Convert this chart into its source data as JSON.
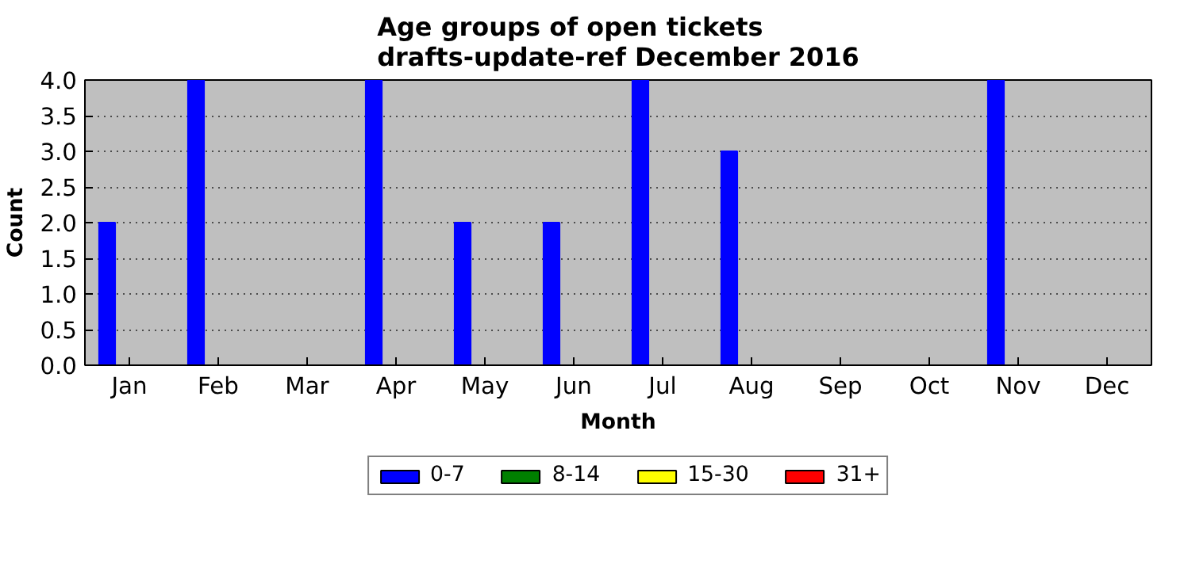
{
  "chart_data": {
    "type": "bar",
    "title": "Age groups of open tickets\ndrafts-update-ref December 2016",
    "xlabel": "Month",
    "ylabel": "Count",
    "categories": [
      "Jan",
      "Feb",
      "Mar",
      "Apr",
      "May",
      "Jun",
      "Jul",
      "Aug",
      "Sep",
      "Oct",
      "Nov",
      "Dec"
    ],
    "series": [
      {
        "name": "0-7",
        "color": "#0000ff",
        "values": [
          2,
          4,
          0,
          4,
          2,
          2,
          4,
          3,
          0,
          0,
          4,
          0
        ]
      },
      {
        "name": "8-14",
        "color": "#008000",
        "values": [
          0,
          0,
          0,
          0,
          0,
          0,
          0,
          0,
          0,
          0,
          0,
          0
        ]
      },
      {
        "name": "15-30",
        "color": "#ffff00",
        "values": [
          0,
          0,
          0,
          0,
          0,
          0,
          0,
          0,
          0,
          0,
          0,
          0
        ]
      },
      {
        "name": "31+",
        "color": "#ff0000",
        "values": [
          0,
          0,
          0,
          0,
          0,
          0,
          0,
          0,
          0,
          0,
          0,
          0
        ]
      }
    ],
    "ylim": [
      0,
      4
    ],
    "yticks": [
      {
        "value": 0,
        "label": "0.0"
      },
      0.5,
      {
        "value": 1,
        "label": "1.0"
      },
      1.5,
      {
        "value": 2,
        "label": "2.0"
      },
      2.5,
      {
        "value": 3,
        "label": "3.0"
      },
      3.5,
      {
        "value": 4,
        "label": "4.0"
      }
    ],
    "grid": "y",
    "legend": "bottom"
  }
}
